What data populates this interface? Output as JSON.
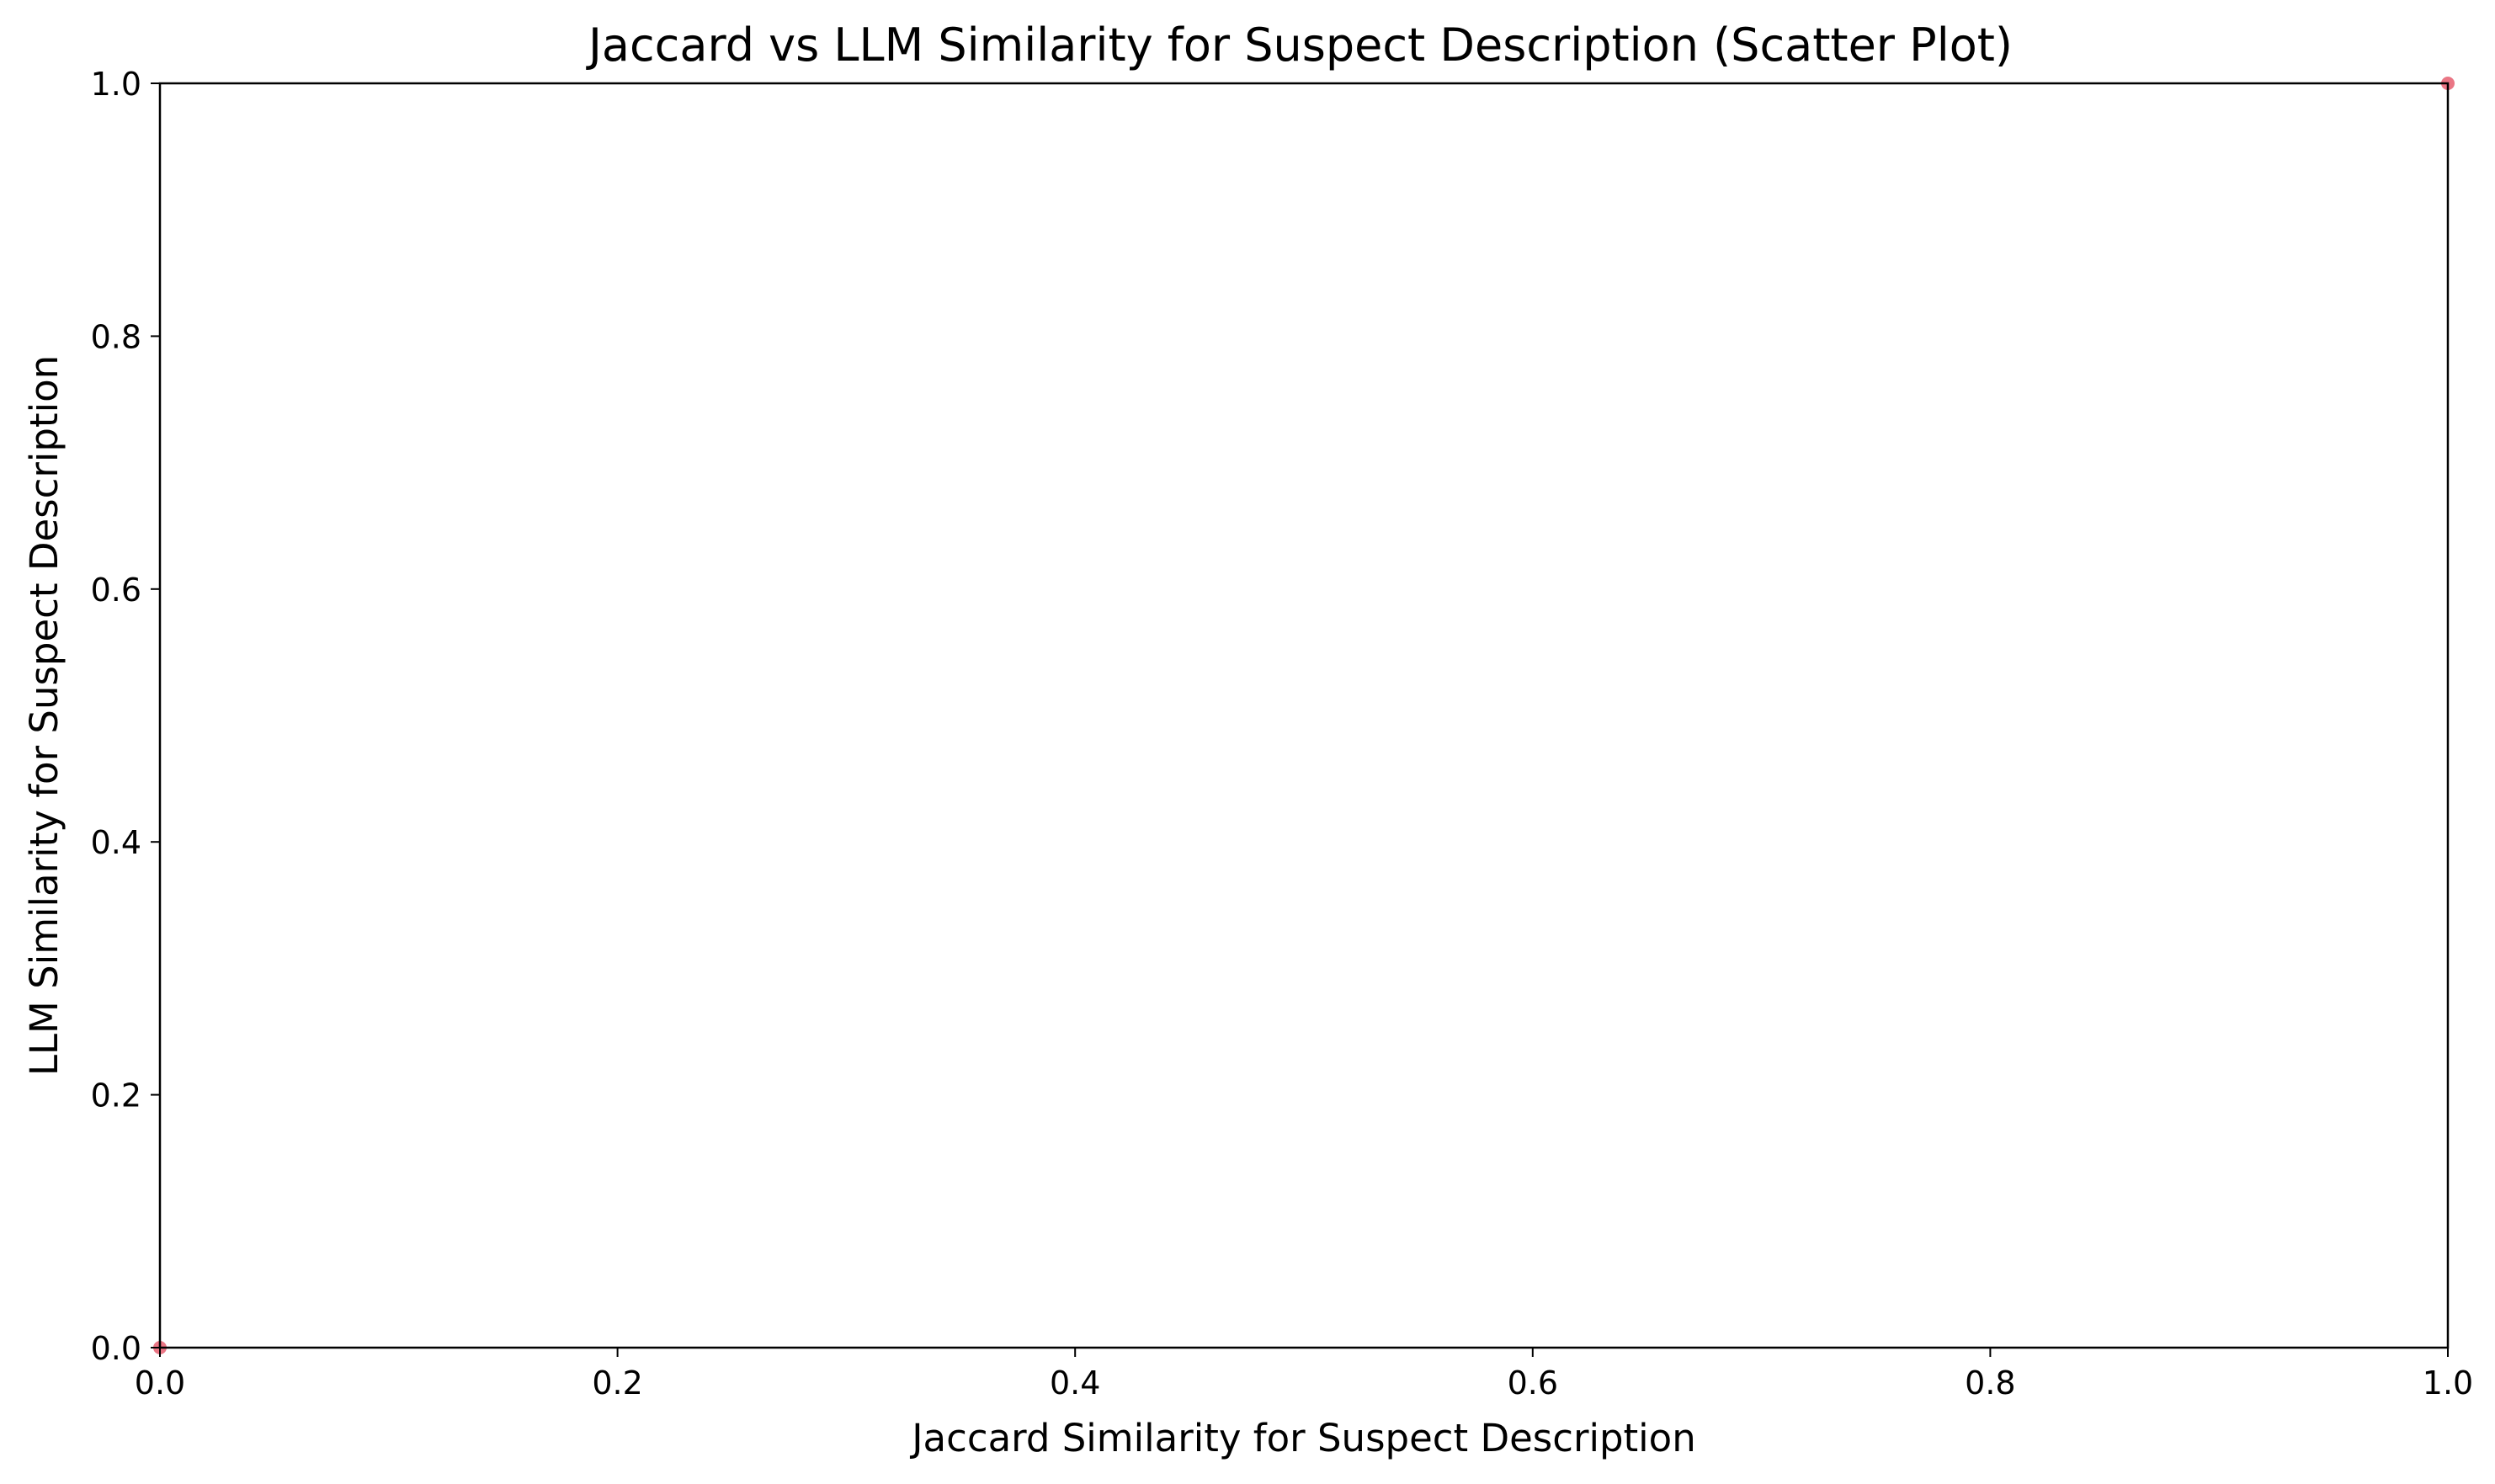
{
  "chart_data": {
    "type": "scatter",
    "title": "Jaccard vs LLM Similarity for Suspect Description (Scatter Plot)",
    "xlabel": "Jaccard Similarity for Suspect Description",
    "ylabel": "LLM Similarity for Suspect Description",
    "xlim": [
      0.0,
      1.0
    ],
    "ylim": [
      0.0,
      1.0
    ],
    "xticks": [
      0.0,
      0.2,
      0.4,
      0.6,
      0.8,
      1.0
    ],
    "yticks": [
      0.0,
      0.2,
      0.4,
      0.6,
      0.8,
      1.0
    ],
    "xtick_labels": [
      "0.0",
      "0.2",
      "0.4",
      "0.6",
      "0.8",
      "1.0"
    ],
    "ytick_labels": [
      "0.0",
      "0.2",
      "0.4",
      "0.6",
      "0.8",
      "1.0"
    ],
    "grid": false,
    "legend": "none",
    "series": [
      {
        "color": "#e3485c",
        "points": [
          {
            "x": 0.0,
            "y": 0.0
          },
          {
            "x": 1.0,
            "y": 1.0
          }
        ]
      }
    ]
  }
}
